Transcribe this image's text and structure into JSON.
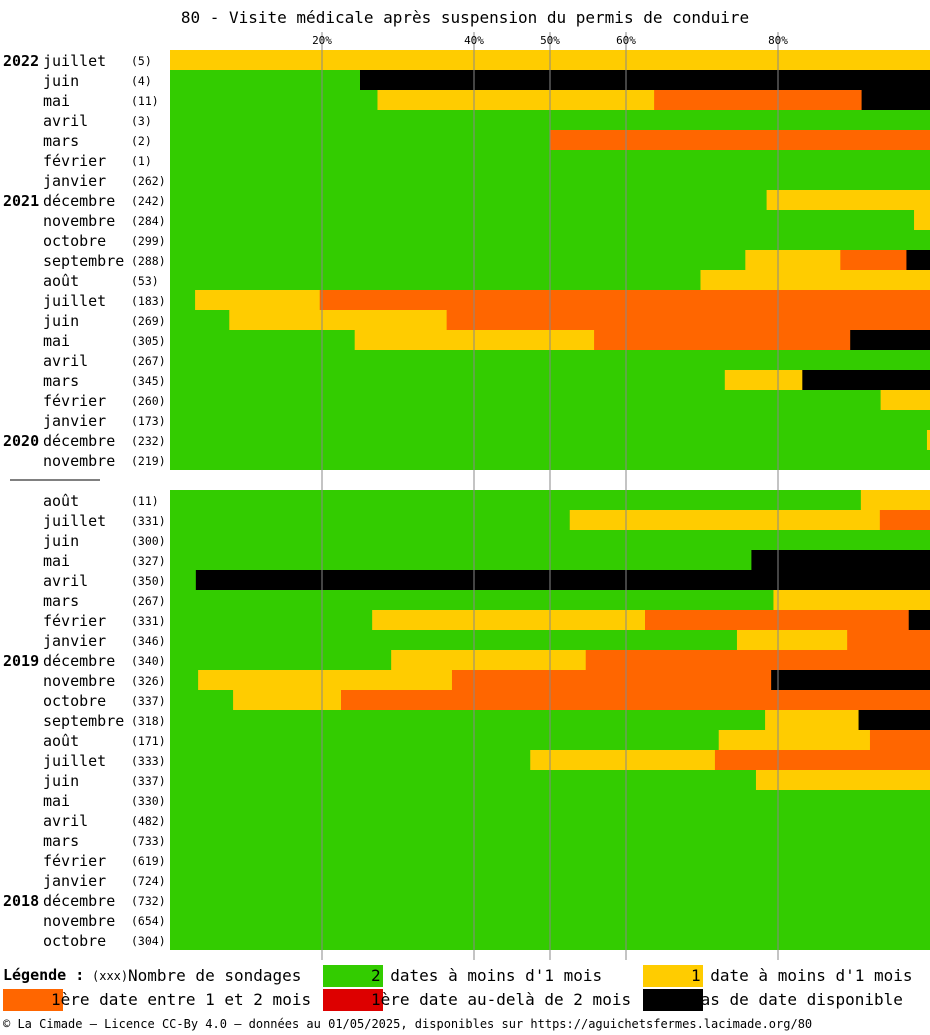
{
  "title": "80 - Visite médicale après suspension du permis de conduire",
  "legend": {
    "title": "Légende :",
    "count_marker": "(xxx)",
    "count_label": "Nombre de sondages",
    "items": [
      {
        "label": "2 dates à moins d'1 mois",
        "color": "#33cc00"
      },
      {
        "label": "1 date à moins d'1 mois",
        "color": "#ffcc00"
      },
      {
        "label": "1ère date entre 1 et 2 mois",
        "color": "#ff6600"
      },
      {
        "label": "1ère date au-delà de 2 mois",
        "color": "#dd0000"
      },
      {
        "label": "pas de date disponible",
        "color": "#000000"
      }
    ]
  },
  "footer": "© La Cimade — Licence CC-By 4.0 — données au 01/05/2025, disponibles sur https://aguichetsfermes.lacimade.org/80",
  "chart_data": {
    "type": "bar",
    "orientation": "horizontal-stacked-100",
    "x_ticks": [
      "20%",
      "40%",
      "50%",
      "60%",
      "80%"
    ],
    "tick_values": [
      20,
      40,
      50,
      60,
      80
    ],
    "xlim": [
      0,
      100
    ],
    "series_names": [
      "2 dates à moins d'1 mois",
      "1 date à moins d'1 mois",
      "1ère date entre 1 et 2 mois",
      "1ère date au-delà de 2 mois",
      "pas de date disponible"
    ],
    "groups": [
      {
        "rows": [
          {
            "year": "2022",
            "month": "juillet",
            "count": "(5)",
            "values": [
              0,
              100,
              0,
              0,
              0
            ]
          },
          {
            "year": "",
            "month": "juin",
            "count": "(4)",
            "values": [
              25,
              0,
              0,
              0,
              75
            ]
          },
          {
            "year": "",
            "month": "mai",
            "count": "(11)",
            "values": [
              27.3,
              36.4,
              27.3,
              0,
              9
            ]
          },
          {
            "year": "",
            "month": "avril",
            "count": "(3)",
            "values": [
              100,
              0,
              0,
              0,
              0
            ]
          },
          {
            "year": "",
            "month": "mars",
            "count": "(2)",
            "values": [
              50,
              0,
              50,
              0,
              0
            ]
          },
          {
            "year": "",
            "month": "février",
            "count": "(1)",
            "values": [
              100,
              0,
              0,
              0,
              0
            ]
          },
          {
            "year": "",
            "month": "janvier",
            "count": "(262)",
            "values": [
              100,
              0,
              0,
              0,
              0
            ]
          },
          {
            "year": "2021",
            "month": "décembre",
            "count": "(242)",
            "values": [
              78.5,
              21.5,
              0,
              0,
              0
            ]
          },
          {
            "year": "",
            "month": "novembre",
            "count": "(284)",
            "values": [
              97.9,
              2.1,
              0,
              0,
              0
            ]
          },
          {
            "year": "",
            "month": "octobre",
            "count": "(299)",
            "values": [
              100,
              0,
              0,
              0,
              0
            ]
          },
          {
            "year": "",
            "month": "septembre",
            "count": "(288)",
            "values": [
              75.7,
              12.5,
              8.7,
              0,
              3.1
            ]
          },
          {
            "year": "",
            "month": "août",
            "count": "(53)",
            "values": [
              69.8,
              30.2,
              0,
              0,
              0
            ]
          },
          {
            "year": "",
            "month": "juillet",
            "count": "(183)",
            "values": [
              3.3,
              16.4,
              80.3,
              0,
              0
            ]
          },
          {
            "year": "",
            "month": "juin",
            "count": "(269)",
            "values": [
              7.8,
              28.6,
              63.6,
              0,
              0
            ]
          },
          {
            "year": "",
            "month": "mai",
            "count": "(305)",
            "values": [
              24.3,
              31.5,
              33.7,
              0,
              10.5
            ]
          },
          {
            "year": "",
            "month": "avril",
            "count": "(267)",
            "values": [
              100,
              0,
              0,
              0,
              0
            ]
          },
          {
            "year": "",
            "month": "mars",
            "count": "(345)",
            "values": [
              73,
              10.2,
              0,
              0,
              16.8
            ]
          },
          {
            "year": "",
            "month": "février",
            "count": "(260)",
            "values": [
              93.5,
              6.5,
              0,
              0,
              0
            ]
          },
          {
            "year": "",
            "month": "janvier",
            "count": "(173)",
            "values": [
              100,
              0,
              0,
              0,
              0
            ]
          },
          {
            "year": "2020",
            "month": "décembre",
            "count": "(232)",
            "values": [
              99.6,
              0.4,
              0,
              0,
              0
            ]
          },
          {
            "year": "",
            "month": "novembre",
            "count": "(219)",
            "values": [
              100,
              0,
              0,
              0,
              0
            ]
          }
        ]
      },
      {
        "rows": [
          {
            "year": "",
            "month": "août",
            "count": "(11)",
            "values": [
              90.9,
              9.1,
              0,
              0,
              0
            ]
          },
          {
            "year": "",
            "month": "juillet",
            "count": "(331)",
            "values": [
              52.6,
              40.8,
              6.6,
              0,
              0
            ]
          },
          {
            "year": "",
            "month": "juin",
            "count": "(300)",
            "values": [
              100,
              0,
              0,
              0,
              0
            ]
          },
          {
            "year": "",
            "month": "mai",
            "count": "(327)",
            "values": [
              76.5,
              0,
              0,
              0,
              23.5
            ]
          },
          {
            "year": "",
            "month": "avril",
            "count": "(350)",
            "values": [
              3.4,
              0,
              0,
              0,
              96.6
            ]
          },
          {
            "year": "",
            "month": "mars",
            "count": "(267)",
            "values": [
              79.4,
              20.6,
              0,
              0,
              0
            ]
          },
          {
            "year": "",
            "month": "février",
            "count": "(331)",
            "values": [
              26.6,
              35.9,
              34.7,
              0,
              2.8
            ]
          },
          {
            "year": "",
            "month": "janvier",
            "count": "(346)",
            "values": [
              74.6,
              14.5,
              10.9,
              0,
              0
            ]
          },
          {
            "year": "2019",
            "month": "décembre",
            "count": "(340)",
            "values": [
              29.1,
              25.6,
              45.3,
              0,
              0
            ]
          },
          {
            "year": "",
            "month": "novembre",
            "count": "(326)",
            "values": [
              3.7,
              33.4,
              42,
              0,
              20.9
            ]
          },
          {
            "year": "",
            "month": "octobre",
            "count": "(337)",
            "values": [
              8.3,
              14.2,
              77.5,
              0,
              0
            ]
          },
          {
            "year": "",
            "month": "septembre",
            "count": "(318)",
            "values": [
              78.3,
              12.3,
              0,
              0,
              9.4
            ]
          },
          {
            "year": "",
            "month": "août",
            "count": "(171)",
            "values": [
              72.2,
              19.9,
              7.9,
              0,
              0
            ]
          },
          {
            "year": "",
            "month": "juillet",
            "count": "(333)",
            "values": [
              47.4,
              24.3,
              28.3,
              0,
              0
            ]
          },
          {
            "year": "",
            "month": "juin",
            "count": "(337)",
            "values": [
              77.1,
              22.9,
              0,
              0,
              0
            ]
          },
          {
            "year": "",
            "month": "mai",
            "count": "(330)",
            "values": [
              100,
              0,
              0,
              0,
              0
            ]
          },
          {
            "year": "",
            "month": "avril",
            "count": "(482)",
            "values": [
              100,
              0,
              0,
              0,
              0
            ]
          },
          {
            "year": "",
            "month": "mars",
            "count": "(733)",
            "values": [
              100,
              0,
              0,
              0,
              0
            ]
          },
          {
            "year": "",
            "month": "février",
            "count": "(619)",
            "values": [
              100,
              0,
              0,
              0,
              0
            ]
          },
          {
            "year": "",
            "month": "janvier",
            "count": "(724)",
            "values": [
              100,
              0,
              0,
              0,
              0
            ]
          },
          {
            "year": "2018",
            "month": "décembre",
            "count": "(732)",
            "values": [
              100,
              0,
              0,
              0,
              0
            ]
          },
          {
            "year": "",
            "month": "novembre",
            "count": "(654)",
            "values": [
              100,
              0,
              0,
              0,
              0
            ]
          },
          {
            "year": "",
            "month": "octobre",
            "count": "(304)",
            "values": [
              100,
              0,
              0,
              0,
              0
            ]
          }
        ]
      }
    ]
  }
}
